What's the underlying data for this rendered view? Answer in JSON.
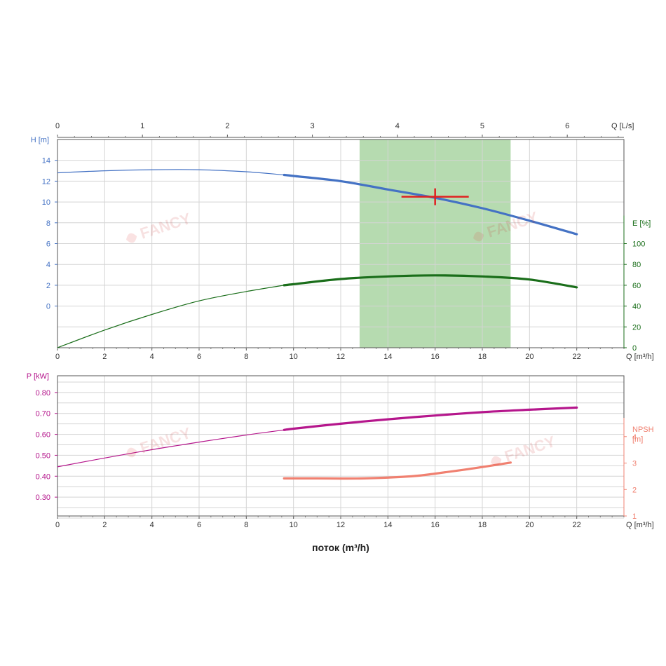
{
  "chart_data": [
    {
      "type": "line",
      "name_hint": "pump-head-efficiency",
      "top_axis": {
        "label": "Q [L/s]",
        "ticks": [
          "0",
          "1",
          "2",
          "3",
          "4",
          "5",
          "6"
        ],
        "range": [
          0,
          6.667
        ]
      },
      "x_axis": {
        "label": "Q [m³/h]",
        "ticks": [
          "0",
          "2",
          "4",
          "6",
          "8",
          "10",
          "12",
          "14",
          "16",
          "18",
          "20",
          "22"
        ],
        "range": [
          0,
          24
        ]
      },
      "y_left": {
        "label": "H [m]",
        "ticks": [
          "0",
          "2",
          "4",
          "6",
          "8",
          "10",
          "12",
          "14"
        ],
        "range": [
          -4,
          16
        ],
        "color": "#4472c4"
      },
      "y_right": {
        "label": "E [%]",
        "ticks": [
          "0",
          "20",
          "40",
          "60",
          "80",
          "100"
        ],
        "range": [
          0,
          200
        ],
        "color": "#1a6e1a"
      },
      "grid": true,
      "operating_range": {
        "x_from": 12.8,
        "x_to": 19.2,
        "color": "#a9d5a2"
      },
      "duty_point": {
        "x": 16,
        "y": 10.5,
        "color": "#e02020"
      },
      "series": [
        {
          "axis": "left",
          "color": "#4472c4",
          "bold_from": 9.6,
          "x": [
            0,
            2,
            4,
            6,
            8,
            9.6,
            10,
            12,
            14,
            16,
            18,
            20,
            22
          ],
          "y": [
            12.8,
            13.0,
            13.1,
            13.1,
            12.9,
            12.6,
            12.5,
            12.0,
            11.2,
            10.4,
            9.4,
            8.2,
            6.9
          ]
        },
        {
          "axis": "right",
          "color": "#1a6e1a",
          "bold_from": 9.6,
          "x": [
            0,
            2,
            4,
            6,
            8,
            9.6,
            10,
            12,
            14,
            16,
            18,
            20,
            22
          ],
          "y": [
            0,
            17,
            32,
            45,
            54,
            60,
            61,
            66,
            68.5,
            69.5,
            68.5,
            65.5,
            58
          ]
        }
      ]
    },
    {
      "type": "line",
      "name_hint": "pump-power-npsh",
      "x_axis": {
        "label": "Q [m³/h]",
        "ticks": [
          "0",
          "2",
          "4",
          "6",
          "8",
          "10",
          "12",
          "14",
          "16",
          "18",
          "20",
          "22"
        ],
        "range": [
          0,
          24
        ]
      },
      "y_left": {
        "label": "P [kW]",
        "ticks": [
          "0.30",
          "0.40",
          "0.50",
          "0.60",
          "0.70",
          "0.80"
        ],
        "range": [
          0.21,
          0.88
        ],
        "color": "#b5168c"
      },
      "y_right": {
        "label": "NPSH [m]",
        "label_line1": "NPSH",
        "label_line2": "[m]",
        "ticks": [
          "1",
          "2",
          "3",
          "4"
        ],
        "range": [
          1,
          6.3
        ],
        "color": "#f08070"
      },
      "grid": true,
      "series": [
        {
          "axis": "left",
          "color": "#b5168c",
          "bold_from": 9.6,
          "x": [
            0,
            2,
            4,
            6,
            8,
            9.6,
            10,
            12,
            14,
            16,
            18,
            20,
            22
          ],
          "y": [
            0.445,
            0.487,
            0.527,
            0.563,
            0.597,
            0.621,
            0.627,
            0.651,
            0.672,
            0.69,
            0.706,
            0.718,
            0.728
          ]
        },
        {
          "axis": "right",
          "color": "#f08070",
          "bold_from": 9.6,
          "x": [
            9.6,
            11,
            13,
            15,
            16,
            17,
            18,
            19.2
          ],
          "y": [
            2.42,
            2.42,
            2.42,
            2.5,
            2.6,
            2.72,
            2.85,
            3.02
          ]
        }
      ]
    }
  ],
  "xlabel": "поток (m³/h)",
  "watermark": "FANCY"
}
